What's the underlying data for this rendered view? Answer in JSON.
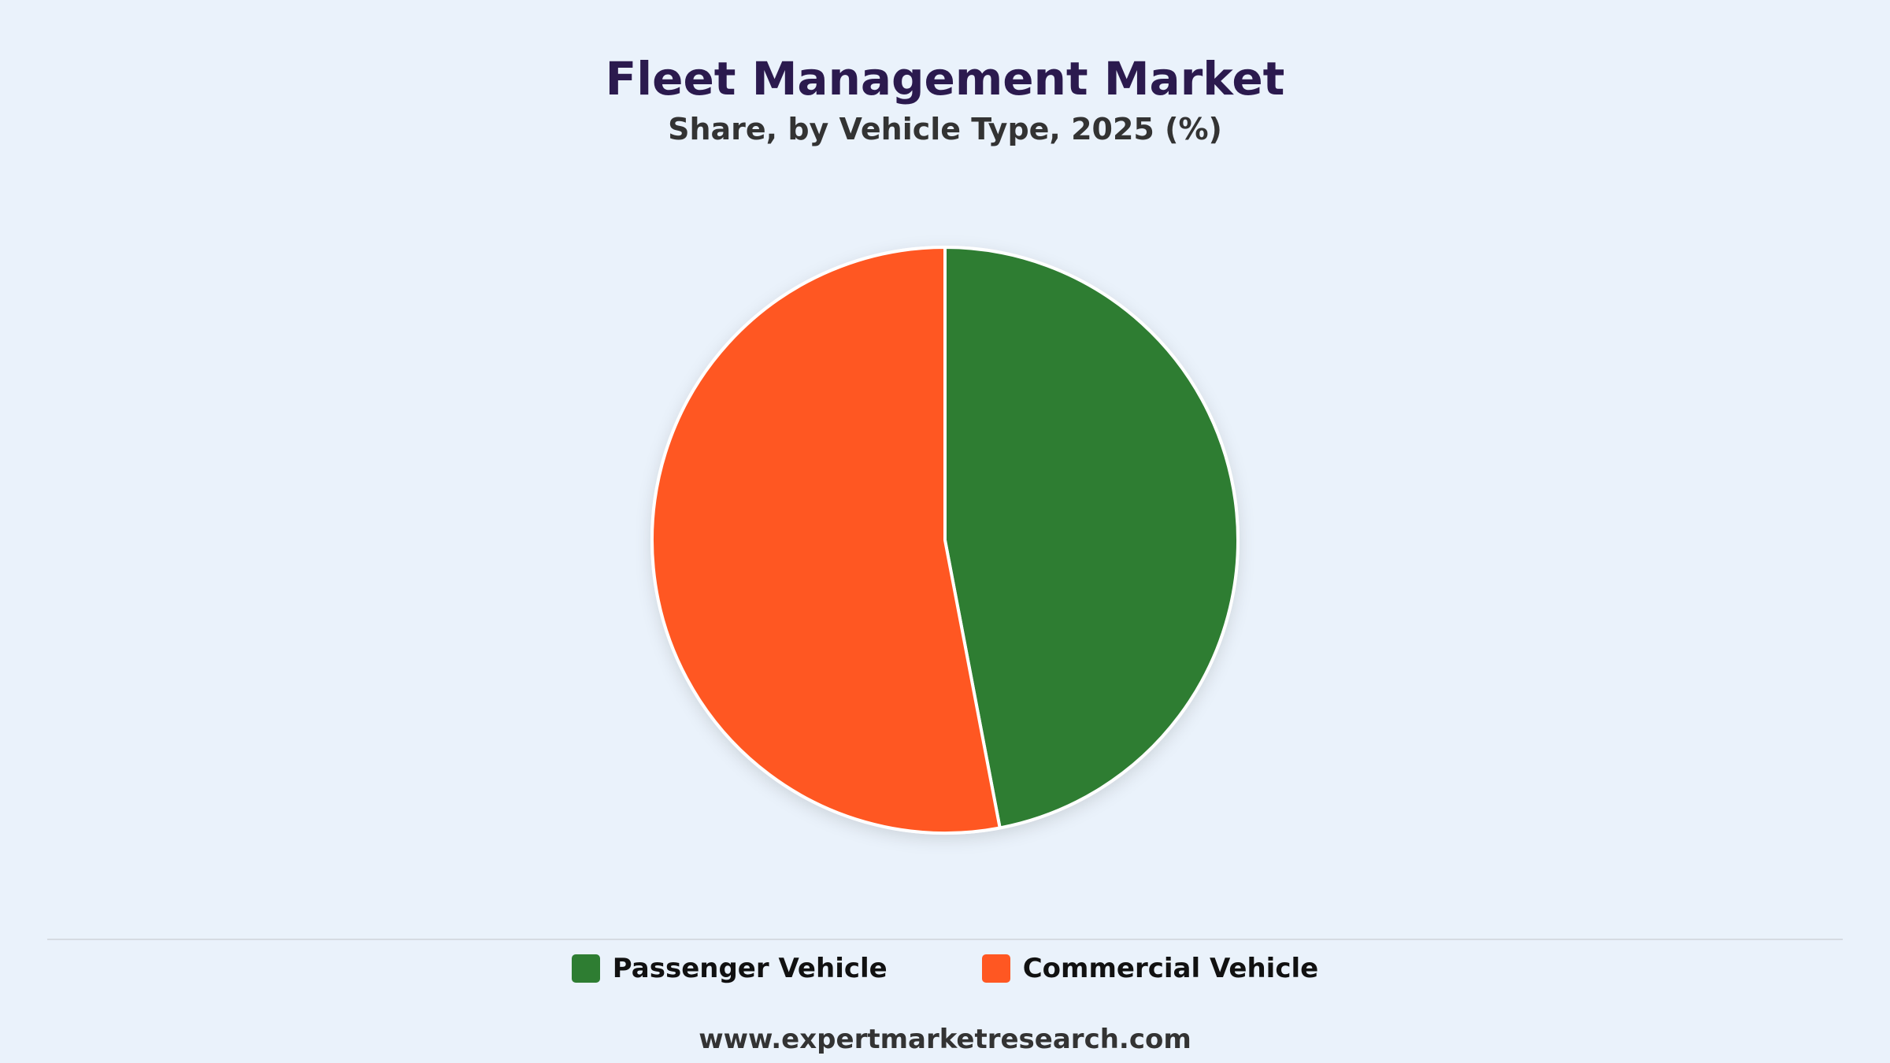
{
  "chart_data": {
    "type": "pie",
    "title": "Fleet Management Market",
    "subtitle": "Share, by Vehicle Type, 2025 (%)",
    "slices": [
      {
        "label": "Passenger Vehicle",
        "value": 47,
        "color": "#2e7d32"
      },
      {
        "label": "Commercial Vehicle",
        "value": 53,
        "color": "#ff5722"
      }
    ],
    "legend_position": "bottom"
  },
  "footer": {
    "source": "www.expertmarketresearch.com"
  }
}
